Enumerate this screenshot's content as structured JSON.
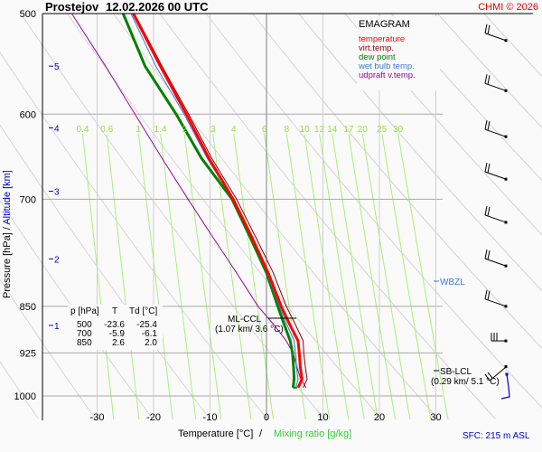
{
  "header": {
    "station": "Prostejov",
    "datetime": "12.02.2026 00 UTC",
    "copyright": "CHMI © 2026"
  },
  "legend": {
    "title": "EMAGRAM",
    "items": [
      {
        "label": "temperature",
        "color": "#ff0000"
      },
      {
        "label": "virt.temp.",
        "color": "#8b0000"
      },
      {
        "label": "dew point",
        "color": "#008000"
      },
      {
        "label": "wet bulb temp.",
        "color": "#3c78d8"
      },
      {
        "label": "udpraft v.temp.",
        "color": "#a000a0"
      }
    ]
  },
  "table": {
    "headers": [
      "p [hPa]",
      "T",
      "Td [°C]"
    ],
    "rows": [
      [
        "500",
        "-23.6",
        "-25.4"
      ],
      [
        "700",
        "-5.9",
        "-6.1"
      ],
      [
        "850",
        "2.6",
        "2.0"
      ]
    ]
  },
  "annotations": {
    "ml_ccl_label": "ML-CCL",
    "ml_ccl_value": "(1.07 km/ 3.6 °C)",
    "wbzl_label": "WBZL",
    "sb_lcl_label": "SB-LCL",
    "sb_lcl_value": "(0.29 km/ 5.1 °C)"
  },
  "footer": {
    "xlabel_temp": "Temperature [°C]",
    "xlabel_sep": "/",
    "xlabel_mix": "Mixing ratio [g/kg]",
    "sfc": "SFC: 215 m ASL"
  },
  "chart_data": {
    "type": "line",
    "title": "Prostejov 12.02.2026 00 UTC — EMAGRAM",
    "xlabel": "Temperature [°C] / Mixing ratio [g/kg]",
    "ylabel": "Pressure [hPa] / Altitude [km]",
    "xlim": [
      -38,
      33
    ],
    "ylim_pressure": [
      1000,
      500
    ],
    "x_ticks": [
      -30,
      -20,
      -10,
      0,
      10,
      20,
      30
    ],
    "x_tick_labels": [
      "-30",
      "-20",
      "-10",
      "0",
      "10",
      "20",
      "30"
    ],
    "pressure_ticks": [
      500,
      600,
      700,
      850,
      925,
      1000
    ],
    "pressure_tick_labels": [
      "500",
      "600",
      "700",
      "850",
      "925",
      "1000"
    ],
    "altitude_ticks_km": [
      {
        "label": "5",
        "p": 550
      },
      {
        "label": "4",
        "p": 615
      },
      {
        "label": "3",
        "p": 690
      },
      {
        "label": "2",
        "p": 780
      },
      {
        "label": "1",
        "p": 880
      }
    ],
    "mixing_ratio_labels": [
      "0.4",
      "0.6",
      "1",
      "1.4",
      "2",
      "3",
      "4",
      "6",
      "8",
      "10",
      "12",
      "14",
      "17",
      "20",
      "25",
      "30"
    ],
    "grid": true,
    "series": [
      {
        "name": "temperature",
        "color": "#ff0000",
        "points": [
          [
            500,
            -23.6
          ],
          [
            550,
            -18.8
          ],
          [
            600,
            -14.2
          ],
          [
            650,
            -10.2
          ],
          [
            700,
            -5.9
          ],
          [
            750,
            -2.6
          ],
          [
            800,
            0.3
          ],
          [
            850,
            2.6
          ],
          [
            880,
            4.2
          ],
          [
            905,
            5.6
          ],
          [
            925,
            5.8
          ],
          [
            950,
            6.0
          ],
          [
            970,
            6.3
          ],
          [
            985,
            5.6
          ]
        ]
      },
      {
        "name": "virt.temp.",
        "color": "#8b0000",
        "points": [
          [
            500,
            -23.4
          ],
          [
            550,
            -18.5
          ],
          [
            600,
            -13.8
          ],
          [
            650,
            -9.7
          ],
          [
            700,
            -5.3
          ],
          [
            750,
            -1.9
          ],
          [
            800,
            1.2
          ],
          [
            850,
            3.5
          ],
          [
            880,
            5.2
          ],
          [
            905,
            6.5
          ],
          [
            925,
            6.6
          ],
          [
            950,
            6.9
          ],
          [
            970,
            7.2
          ],
          [
            985,
            6.5
          ]
        ]
      },
      {
        "name": "dew point",
        "color": "#008000",
        "points": [
          [
            500,
            -25.4
          ],
          [
            550,
            -21.5
          ],
          [
            600,
            -16.0
          ],
          [
            650,
            -11.5
          ],
          [
            700,
            -6.1
          ],
          [
            750,
            -2.9
          ],
          [
            800,
            0.0
          ],
          [
            850,
            2.0
          ],
          [
            880,
            3.2
          ],
          [
            905,
            4.2
          ],
          [
            925,
            4.6
          ],
          [
            950,
            4.8
          ],
          [
            970,
            4.9
          ],
          [
            985,
            4.7
          ]
        ]
      },
      {
        "name": "wet bulb temp.",
        "color": "#3c78d8",
        "points": [
          [
            500,
            -24.0
          ],
          [
            550,
            -19.6
          ],
          [
            600,
            -14.6
          ],
          [
            650,
            -10.5
          ],
          [
            700,
            -6.0
          ],
          [
            750,
            -2.7
          ],
          [
            800,
            0.1
          ],
          [
            850,
            2.3
          ],
          [
            880,
            3.7
          ],
          [
            905,
            4.9
          ],
          [
            925,
            5.1
          ],
          [
            950,
            5.3
          ],
          [
            970,
            5.6
          ],
          [
            985,
            5.2
          ]
        ]
      },
      {
        "name": "udpraft v.temp.",
        "color": "#a000a0",
        "points": [
          [
            500,
            -34.5
          ],
          [
            550,
            -28.5
          ],
          [
            600,
            -23.3
          ],
          [
            650,
            -18.5
          ],
          [
            700,
            -13.9
          ],
          [
            750,
            -9.5
          ],
          [
            800,
            -5.3
          ],
          [
            850,
            -1.5
          ],
          [
            880,
            1.4
          ],
          [
            905,
            3.5
          ],
          [
            925,
            4.7
          ],
          [
            950,
            5.4
          ],
          [
            970,
            6.1
          ],
          [
            985,
            7.0
          ]
        ]
      }
    ],
    "wind_barbs": [
      {
        "p": 525,
        "speed_kt": 15,
        "from": "W"
      },
      {
        "p": 575,
        "speed_kt": 15,
        "from": "W"
      },
      {
        "p": 625,
        "speed_kt": 15,
        "from": "W"
      },
      {
        "p": 675,
        "speed_kt": 15,
        "from": "W"
      },
      {
        "p": 730,
        "speed_kt": 15,
        "from": "W"
      },
      {
        "p": 790,
        "speed_kt": 15,
        "from": "W"
      },
      {
        "p": 850,
        "speed_kt": 15,
        "from": "W"
      },
      {
        "p": 905,
        "speed_kt": 25,
        "from": "W"
      },
      {
        "p": 960,
        "speed_kt": 15,
        "from": "SW"
      }
    ]
  }
}
